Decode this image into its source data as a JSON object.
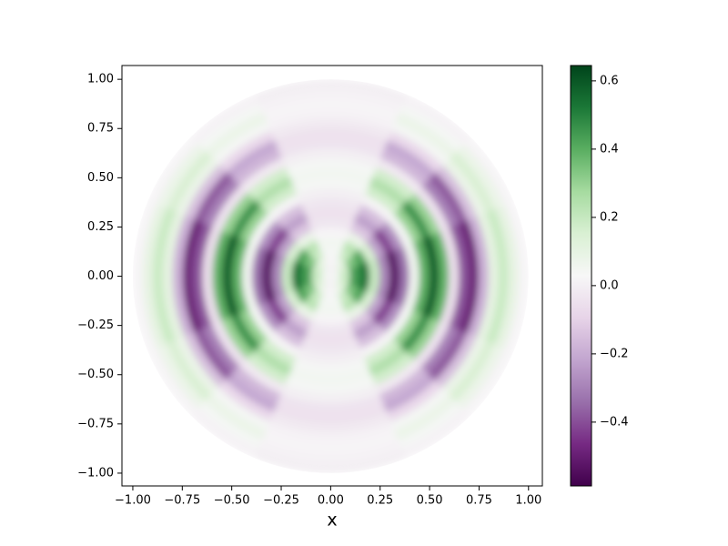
{
  "chart_data": {
    "type": "polar_heatmap",
    "x_label": "x",
    "xlim": [
      -1.055,
      1.07
    ],
    "ylim": [
      -1.065,
      1.07
    ],
    "xticks": [
      {
        "value": -1,
        "label": "−1.00"
      },
      {
        "value": -0.75,
        "label": "−0.75"
      },
      {
        "value": -0.5,
        "label": "−0.50"
      },
      {
        "value": -0.25,
        "label": "−0.25"
      },
      {
        "value": 0,
        "label": "0.00"
      },
      {
        "value": 0.25,
        "label": "0.25"
      },
      {
        "value": 0.5,
        "label": "0.50"
      },
      {
        "value": 0.75,
        "label": "0.75"
      },
      {
        "value": 1,
        "label": "1.00"
      }
    ],
    "yticks": [
      {
        "value": -1,
        "label": "−1.00"
      },
      {
        "value": -0.75,
        "label": "−0.75"
      },
      {
        "value": -0.5,
        "label": "−0.50"
      },
      {
        "value": -0.25,
        "label": "−0.25"
      },
      {
        "value": 0,
        "label": "0.00"
      },
      {
        "value": 0.25,
        "label": "0.25"
      },
      {
        "value": 0.5,
        "label": "0.50"
      },
      {
        "value": 0.75,
        "label": "0.75"
      },
      {
        "value": 1,
        "label": "1.00"
      }
    ],
    "clim": [
      -0.587,
      0.645
    ],
    "cticks": [
      {
        "value": -0.4,
        "label": "−0.4"
      },
      {
        "value": -0.2,
        "label": "−0.2"
      },
      {
        "value": 0,
        "label": "0.0"
      },
      0.2,
      0.4,
      0.6
    ],
    "colormap": [
      "#40004b",
      "#762a83",
      "#9970ab",
      "#c2a5cf",
      "#e7d4e8",
      "#f7f7f7",
      "#d9f0d3",
      "#a6dba0",
      "#5aae61",
      "#1b7837",
      "#00441b"
    ],
    "r_edges": [
      0,
      0.05,
      0.1,
      0.15,
      0.2,
      0.25,
      0.3,
      0.35,
      0.4,
      0.45,
      0.5,
      0.55,
      0.6,
      0.65,
      0.7,
      0.75,
      0.8,
      0.85,
      0.9,
      0.95,
      1
    ],
    "theta_edges": [
      0,
      22.5,
      45,
      67.5,
      90,
      112.5,
      135,
      157.5,
      180,
      202.5,
      225,
      247.5,
      270,
      292.5,
      315,
      337.5,
      360
    ],
    "values": [
      [
        0.05,
        0.04,
        0.02,
        0,
        0,
        0.02,
        0.04,
        0.05,
        0.05,
        0.04,
        0.02,
        0,
        0,
        0.02,
        0.04,
        0.05
      ],
      [
        0.19,
        0.15,
        0.08,
        0.02,
        0.02,
        0.08,
        0.15,
        0.19,
        0.19,
        0.15,
        0.08,
        0.02,
        0.02,
        0.08,
        0.15,
        0.19
      ],
      [
        0.44,
        0.34,
        0.19,
        0.04,
        0.04,
        0.19,
        0.34,
        0.44,
        0.44,
        0.34,
        0.19,
        0.04,
        0.04,
        0.19,
        0.34,
        0.44
      ],
      [
        0.53,
        0.42,
        0.23,
        0.05,
        0.05,
        0.23,
        0.42,
        0.53,
        0.53,
        0.42,
        0.23,
        0.05,
        0.05,
        0.23,
        0.42,
        0.53
      ],
      [
        0.19,
        0.15,
        0.08,
        0.02,
        0.02,
        0.08,
        0.15,
        0.19,
        0.19,
        0.15,
        0.08,
        0.02,
        0.02,
        0.08,
        0.15,
        0.19
      ],
      [
        -0.29,
        -0.23,
        -0.13,
        -0.03,
        -0.03,
        -0.13,
        -0.23,
        -0.29,
        -0.29,
        -0.23,
        -0.13,
        -0.03,
        -0.03,
        -0.13,
        -0.23,
        -0.29
      ],
      [
        -0.53,
        -0.42,
        -0.23,
        -0.05,
        -0.05,
        -0.23,
        -0.42,
        -0.53,
        -0.53,
        -0.42,
        -0.23,
        -0.05,
        -0.05,
        -0.23,
        -0.42,
        -0.53
      ],
      [
        -0.34,
        -0.27,
        -0.15,
        -0.03,
        -0.03,
        -0.15,
        -0.27,
        -0.34,
        -0.34,
        -0.27,
        -0.15,
        -0.03,
        -0.03,
        -0.15,
        -0.27,
        -0.34
      ],
      [
        0.05,
        0.04,
        0.02,
        0,
        0,
        0.02,
        0.04,
        0.05,
        0.05,
        0.04,
        0.02,
        0,
        0,
        0.02,
        0.04,
        0.05
      ],
      [
        0.39,
        0.3,
        0.17,
        0.04,
        0.04,
        0.17,
        0.3,
        0.39,
        0.39,
        0.3,
        0.17,
        0.04,
        0.04,
        0.17,
        0.3,
        0.39
      ],
      [
        0.58,
        0.46,
        0.25,
        0.05,
        0.05,
        0.25,
        0.46,
        0.58,
        0.58,
        0.46,
        0.25,
        0.05,
        0.05,
        0.25,
        0.46,
        0.58
      ],
      [
        0.39,
        0.3,
        0.17,
        0.04,
        0.04,
        0.17,
        0.3,
        0.39,
        0.39,
        0.3,
        0.17,
        0.04,
        0.04,
        0.17,
        0.3,
        0.39
      ],
      [
        -0.05,
        -0.04,
        -0.02,
        0,
        0,
        -0.02,
        -0.04,
        -0.05,
        -0.05,
        -0.04,
        -0.02,
        0,
        0,
        -0.02,
        -0.04,
        -0.05
      ],
      [
        -0.39,
        -0.3,
        -0.17,
        -0.04,
        -0.04,
        -0.17,
        -0.3,
        -0.39,
        -0.39,
        -0.3,
        -0.17,
        -0.04,
        -0.04,
        -0.17,
        -0.3,
        -0.39
      ],
      [
        -0.49,
        -0.38,
        -0.21,
        -0.05,
        -0.05,
        -0.21,
        -0.38,
        -0.49,
        -0.49,
        -0.38,
        -0.21,
        -0.05,
        -0.05,
        -0.21,
        -0.38,
        -0.49
      ],
      [
        -0.19,
        -0.15,
        -0.08,
        -0.02,
        -0.02,
        -0.08,
        -0.15,
        -0.19,
        -0.19,
        -0.15,
        -0.08,
        -0.02,
        -0.02,
        -0.08,
        -0.15,
        -0.19
      ],
      [
        0.1,
        0.08,
        0.04,
        0.01,
        0.01,
        0.04,
        0.08,
        0.1,
        0.1,
        0.08,
        0.04,
        0.01,
        0.01,
        0.04,
        0.08,
        0.1
      ],
      [
        0.19,
        0.15,
        0.08,
        0.02,
        0.02,
        0.08,
        0.15,
        0.19,
        0.19,
        0.15,
        0.08,
        0.02,
        0.02,
        0.08,
        0.15,
        0.19
      ],
      [
        0.1,
        0.08,
        0.04,
        0.01,
        0.01,
        0.04,
        0.08,
        0.1,
        0.1,
        0.08,
        0.04,
        0.01,
        0.01,
        0.04,
        0.08,
        0.1
      ],
      [
        0.02,
        0.02,
        0.01,
        0,
        0,
        0.01,
        0.02,
        0.02,
        0.02,
        0.02,
        0.01,
        0,
        0,
        0.01,
        0.02,
        0.02
      ]
    ]
  }
}
